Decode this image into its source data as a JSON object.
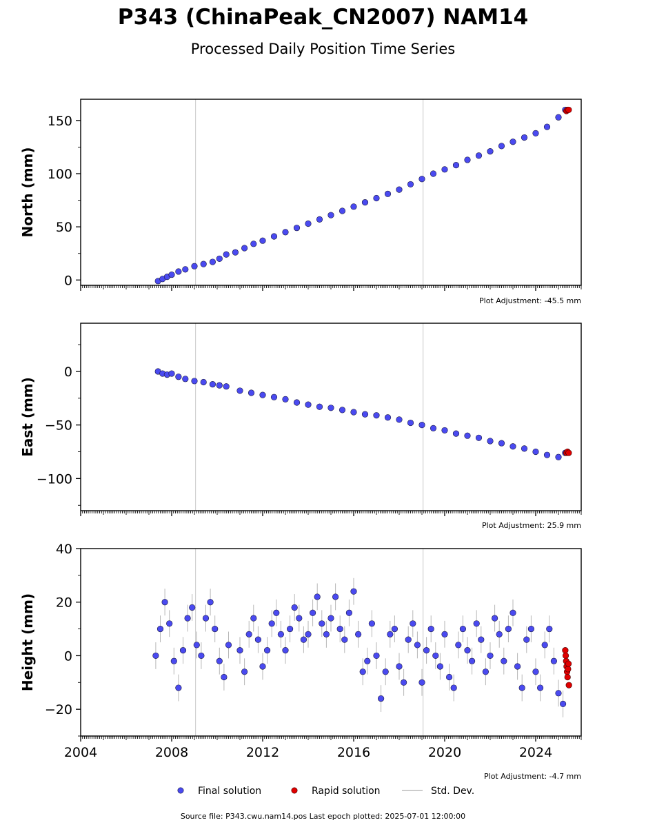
{
  "title": "P343 (ChinaPeak_CN2007) NAM14",
  "subtitle": "Processed Daily Position Time Series",
  "source_line": "Source file: P343.cwu.nam14.pos  Last epoch plotted: 2025-07-01 12:00:00",
  "legend": {
    "final": "Final solution",
    "rapid": "Rapid solution",
    "std": "Std. Dev."
  },
  "colors": {
    "final": "#4a4af0",
    "rapid": "#e00000",
    "std": "#7a7a7a",
    "edge": "#1a1a40"
  },
  "chart_data": [
    {
      "type": "scatter",
      "component": "North",
      "ylabel": "North (mm)",
      "adjustment": "Plot Adjustment: -45.5 mm",
      "xlim": [
        2004,
        2026
      ],
      "ylim": [
        -5,
        170
      ],
      "yticks": [
        0,
        50,
        100,
        150
      ],
      "ytick_labels": [
        "0",
        "50",
        "100",
        "150"
      ],
      "xticks": [
        2004,
        2008,
        2012,
        2016,
        2020,
        2024
      ],
      "xtick_labels": [],
      "vlines": [
        2009.05,
        2019.05
      ],
      "series": [
        {
          "name": "Final solution",
          "x": [
            2007.4,
            2007.6,
            2007.8,
            2008.0,
            2008.3,
            2008.6,
            2009.0,
            2009.4,
            2009.8,
            2010.1,
            2010.4,
            2010.8,
            2011.2,
            2011.6,
            2012.0,
            2012.5,
            2013.0,
            2013.5,
            2014.0,
            2014.5,
            2015.0,
            2015.5,
            2016.0,
            2016.5,
            2017.0,
            2017.5,
            2018.0,
            2018.5,
            2019.0,
            2019.5,
            2020.0,
            2020.5,
            2021.0,
            2021.5,
            2022.0,
            2022.5,
            2023.0,
            2023.5,
            2024.0,
            2024.5,
            2025.0,
            2025.3
          ],
          "y": [
            -1,
            1,
            3,
            5,
            8,
            10,
            13,
            15,
            17,
            20,
            24,
            26,
            30,
            34,
            37,
            41,
            45,
            49,
            53,
            57,
            61,
            65,
            69,
            73,
            77,
            81,
            85,
            90,
            95,
            100,
            104,
            108,
            113,
            117,
            121,
            126,
            130,
            134,
            138,
            144,
            153,
            160
          ]
        },
        {
          "name": "Rapid solution",
          "x": [
            2025.35,
            2025.4,
            2025.45
          ],
          "y": [
            159,
            160,
            160
          ]
        }
      ]
    },
    {
      "type": "scatter",
      "component": "East",
      "ylabel": "East (mm)",
      "adjustment": "Plot Adjustment: 25.9 mm",
      "xlim": [
        2004,
        2026
      ],
      "ylim": [
        -130,
        45
      ],
      "yticks": [
        -100,
        -50,
        0
      ],
      "ytick_labels": [
        "−100",
        "−50",
        "0"
      ],
      "xticks": [
        2004,
        2008,
        2012,
        2016,
        2020,
        2024
      ],
      "xtick_labels": [],
      "vlines": [
        2009.05,
        2019.05
      ],
      "series": [
        {
          "name": "Final solution",
          "x": [
            2007.4,
            2007.6,
            2007.8,
            2008.0,
            2008.3,
            2008.6,
            2009.0,
            2009.4,
            2009.8,
            2010.1,
            2010.4,
            2011.0,
            2011.5,
            2012.0,
            2012.5,
            2013.0,
            2013.5,
            2014.0,
            2014.5,
            2015.0,
            2015.5,
            2016.0,
            2016.5,
            2017.0,
            2017.5,
            2018.0,
            2018.5,
            2019.0,
            2019.5,
            2020.0,
            2020.5,
            2021.0,
            2021.5,
            2022.0,
            2022.5,
            2023.0,
            2023.5,
            2024.0,
            2024.5,
            2025.0,
            2025.3
          ],
          "y": [
            0,
            -2,
            -3,
            -2,
            -5,
            -7,
            -9,
            -10,
            -12,
            -13,
            -14,
            -18,
            -20,
            -22,
            -24,
            -26,
            -29,
            -31,
            -33,
            -34,
            -36,
            -38,
            -40,
            -41,
            -43,
            -45,
            -48,
            -50,
            -53,
            -55,
            -58,
            -60,
            -62,
            -65,
            -67,
            -70,
            -72,
            -75,
            -78,
            -80,
            -76
          ]
        },
        {
          "name": "Rapid solution",
          "x": [
            2025.35,
            2025.4,
            2025.45
          ],
          "y": [
            -76,
            -75,
            -76
          ]
        }
      ]
    },
    {
      "type": "scatter",
      "component": "Height",
      "ylabel": "Height (mm)",
      "adjustment": "Plot Adjustment: -4.7 mm",
      "xlim": [
        2004,
        2026
      ],
      "ylim": [
        -30,
        40
      ],
      "yticks": [
        -20,
        0,
        20,
        40
      ],
      "ytick_labels": [
        "−20",
        "0",
        "20",
        "40"
      ],
      "xticks": [
        2004,
        2008,
        2012,
        2016,
        2020,
        2024
      ],
      "xtick_labels": [
        "2004",
        "2008",
        "2012",
        "2016",
        "2020",
        "2024"
      ],
      "vlines": [
        2009.05,
        2019.05
      ],
      "series": [
        {
          "name": "Final solution",
          "x": [
            2007.3,
            2007.5,
            2007.7,
            2007.9,
            2008.1,
            2008.3,
            2008.5,
            2008.7,
            2008.9,
            2009.1,
            2009.3,
            2009.5,
            2009.7,
            2009.9,
            2010.1,
            2010.3,
            2010.5,
            2011.0,
            2011.2,
            2011.4,
            2011.6,
            2011.8,
            2012.0,
            2012.2,
            2012.4,
            2012.6,
            2012.8,
            2013.0,
            2013.2,
            2013.4,
            2013.6,
            2013.8,
            2014.0,
            2014.2,
            2014.4,
            2014.6,
            2014.8,
            2015.0,
            2015.2,
            2015.4,
            2015.6,
            2015.8,
            2016.0,
            2016.2,
            2016.4,
            2016.6,
            2016.8,
            2017.0,
            2017.2,
            2017.4,
            2017.6,
            2017.8,
            2018.0,
            2018.2,
            2018.4,
            2018.6,
            2018.8,
            2019.0,
            2019.2,
            2019.4,
            2019.6,
            2019.8,
            2020.0,
            2020.2,
            2020.4,
            2020.6,
            2020.8,
            2021.0,
            2021.2,
            2021.4,
            2021.6,
            2021.8,
            2022.0,
            2022.2,
            2022.4,
            2022.6,
            2022.8,
            2023.0,
            2023.2,
            2023.4,
            2023.6,
            2023.8,
            2024.0,
            2024.2,
            2024.4,
            2024.6,
            2024.8,
            2025.0,
            2025.2
          ],
          "y": [
            0,
            10,
            20,
            12,
            -2,
            -12,
            2,
            14,
            18,
            4,
            0,
            14,
            20,
            10,
            -2,
            -8,
            4,
            2,
            -6,
            8,
            14,
            6,
            -4,
            2,
            12,
            16,
            8,
            2,
            10,
            18,
            14,
            6,
            8,
            16,
            22,
            12,
            8,
            14,
            22,
            10,
            6,
            16,
            24,
            8,
            -6,
            -2,
            12,
            0,
            -16,
            -6,
            8,
            10,
            -4,
            -10,
            6,
            12,
            4,
            -10,
            2,
            10,
            0,
            -4,
            8,
            -8,
            -12,
            4,
            10,
            2,
            -2,
            12,
            6,
            -6,
            0,
            14,
            8,
            -2,
            10,
            16,
            -4,
            -12,
            6,
            10,
            -6,
            -12,
            4,
            10,
            -2,
            -14,
            -18
          ]
        },
        {
          "name": "Rapid solution",
          "x": [
            2025.3,
            2025.32,
            2025.34,
            2025.36,
            2025.38,
            2025.4,
            2025.42,
            2025.44,
            2025.46
          ],
          "y": [
            2,
            0,
            -2,
            -4,
            -6,
            -8,
            -5,
            -3,
            -11
          ]
        }
      ]
    }
  ]
}
